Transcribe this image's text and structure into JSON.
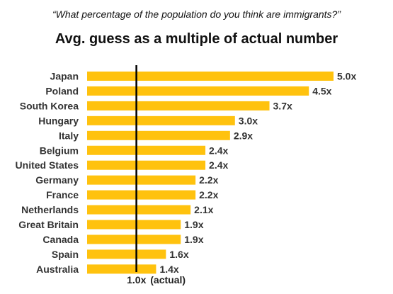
{
  "header": {
    "subtitle": "“What percentage of the population do you think are immigrants?”",
    "title": "Avg. guess as a multiple of actual number"
  },
  "chart_data": {
    "type": "bar",
    "orientation": "horizontal",
    "title": "Avg. guess as a multiple of actual number",
    "subtitle": "“What percentage of the population do you think are immigrants?”",
    "categories": [
      "Japan",
      "Poland",
      "South Korea",
      "Hungary",
      "Italy",
      "Belgium",
      "United States",
      "Germany",
      "France",
      "Netherlands",
      "Great Britain",
      "Canada",
      "Spain",
      "Australia"
    ],
    "values": [
      5.0,
      4.5,
      3.7,
      3.0,
      2.9,
      2.4,
      2.4,
      2.2,
      2.2,
      2.1,
      1.9,
      1.9,
      1.6,
      1.4
    ],
    "value_labels": [
      "5.0x",
      "4.5x",
      "3.7x",
      "3.0x",
      "2.9x",
      "2.4x",
      "2.4x",
      "2.2x",
      "2.2x",
      "2.1x",
      "1.9x",
      "1.9x",
      "1.6x",
      "1.4x"
    ],
    "xlim": [
      0.0,
      5.0
    ],
    "reference_line": {
      "value": 1.0,
      "label_value": "1.0x",
      "label_text": "(actual)"
    },
    "grid": false,
    "colors": {
      "bar": "#FFC20E",
      "reference": "#000000",
      "text": "#333333"
    }
  }
}
